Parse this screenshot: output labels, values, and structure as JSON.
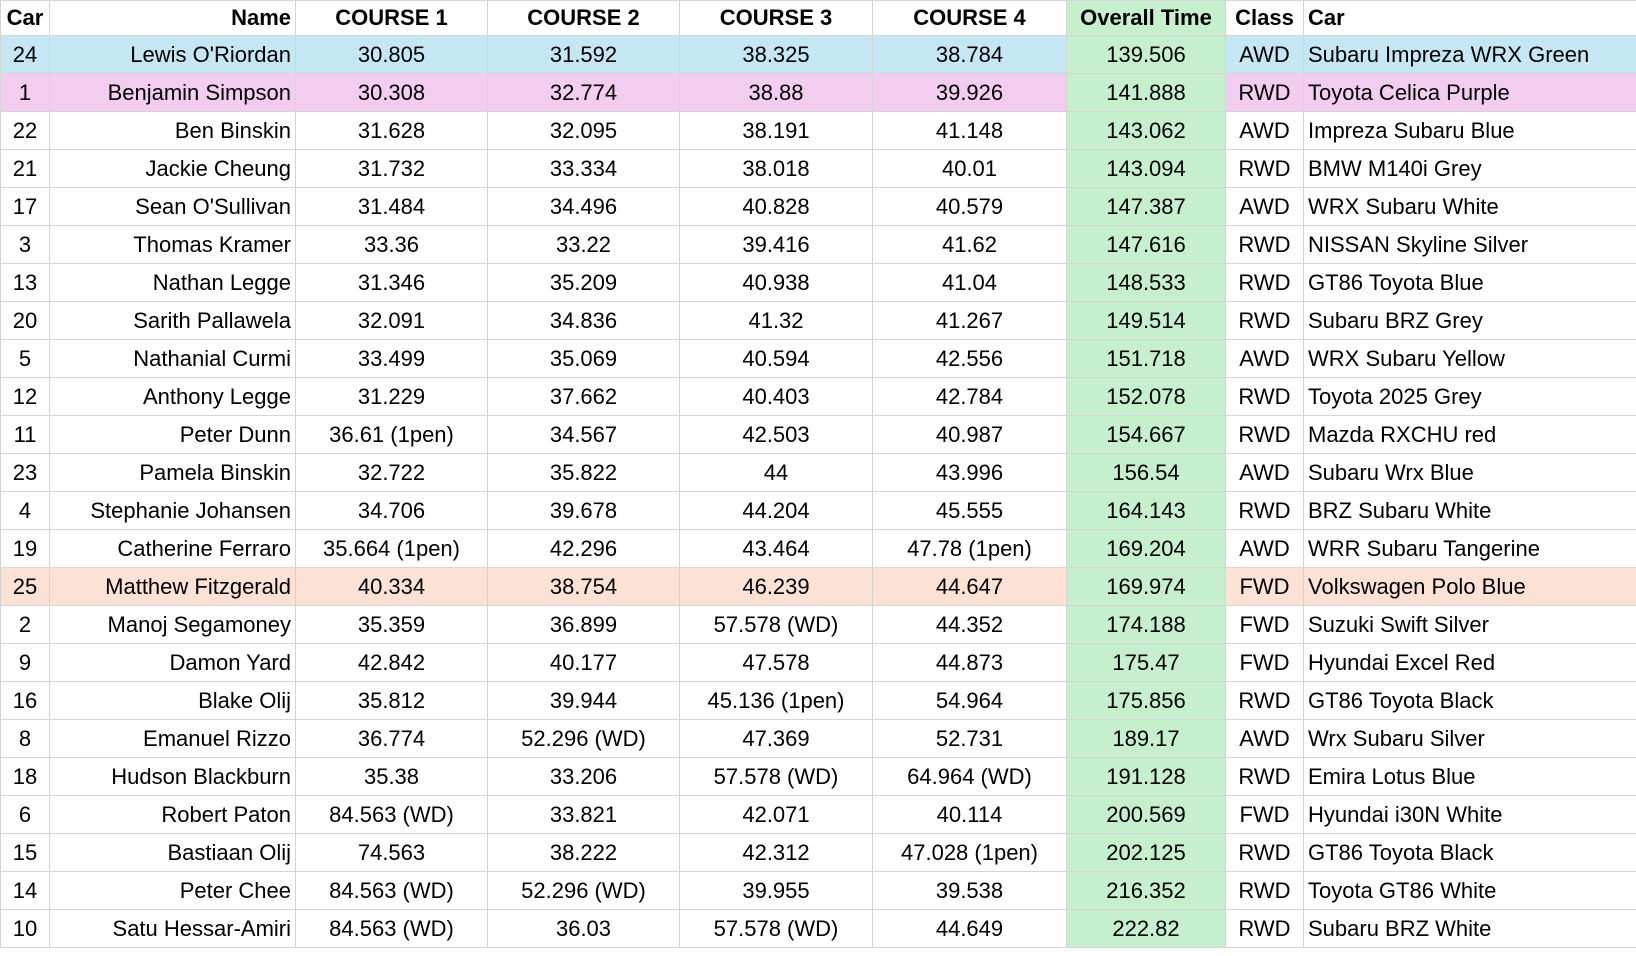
{
  "table": {
    "header": [
      "Car",
      "Name",
      "COURSE 1",
      "COURSE 2",
      "COURSE 3",
      "COURSE 4",
      "Overall Time",
      "Class",
      "Car"
    ],
    "rows": [
      [
        "24",
        "Lewis O'Riordan",
        "30.805",
        "31.592",
        "38.325",
        "38.784",
        "139.506",
        "AWD",
        "Subaru Impreza WRX Green"
      ],
      [
        "1",
        "Benjamin Simpson",
        "30.308",
        "32.774",
        "38.88",
        "39.926",
        "141.888",
        "RWD",
        "Toyota Celica Purple"
      ],
      [
        "22",
        "Ben Binskin",
        "31.628",
        "32.095",
        "38.191",
        "41.148",
        "143.062",
        "AWD",
        "Impreza Subaru Blue"
      ],
      [
        "21",
        "Jackie Cheung",
        "31.732",
        "33.334",
        "38.018",
        "40.01",
        "143.094",
        "RWD",
        "BMW M140i Grey"
      ],
      [
        "17",
        "Sean O'Sullivan",
        "31.484",
        "34.496",
        "40.828",
        "40.579",
        "147.387",
        "AWD",
        "WRX Subaru White"
      ],
      [
        "3",
        "Thomas Kramer",
        "33.36",
        "33.22",
        "39.416",
        "41.62",
        "147.616",
        "RWD",
        "NISSAN Skyline Silver"
      ],
      [
        "13",
        "Nathan Legge",
        "31.346",
        "35.209",
        "40.938",
        "41.04",
        "148.533",
        "RWD",
        "GT86 Toyota Blue"
      ],
      [
        "20",
        "Sarith Pallawela",
        "32.091",
        "34.836",
        "41.32",
        "41.267",
        "149.514",
        "RWD",
        "Subaru BRZ Grey"
      ],
      [
        "5",
        "Nathanial Curmi",
        "33.499",
        "35.069",
        "40.594",
        "42.556",
        "151.718",
        "AWD",
        "WRX Subaru Yellow"
      ],
      [
        "12",
        "Anthony Legge",
        "31.229",
        "37.662",
        "40.403",
        "42.784",
        "152.078",
        "RWD",
        "Toyota 2025 Grey"
      ],
      [
        "11",
        "Peter Dunn",
        "36.61 (1pen)",
        "34.567",
        "42.503",
        "40.987",
        "154.667",
        "RWD",
        "Mazda RXCHU red"
      ],
      [
        "23",
        "Pamela Binskin",
        "32.722",
        "35.822",
        "44",
        "43.996",
        "156.54",
        "AWD",
        "Subaru Wrx Blue"
      ],
      [
        "4",
        "Stephanie Johansen",
        "34.706",
        "39.678",
        "44.204",
        "45.555",
        "164.143",
        "RWD",
        "BRZ Subaru White"
      ],
      [
        "19",
        "Catherine Ferraro",
        "35.664 (1pen)",
        "42.296",
        "43.464",
        "47.78 (1pen)",
        "169.204",
        "AWD",
        "WRR Subaru Tangerine"
      ],
      [
        "25",
        "Matthew Fitzgerald",
        "40.334",
        "38.754",
        "46.239",
        "44.647",
        "169.974",
        "FWD",
        "Volkswagen Polo Blue"
      ],
      [
        "2",
        "Manoj Segamoney",
        "35.359",
        "36.899",
        "57.578 (WD)",
        "44.352",
        "174.188",
        "FWD",
        "Suzuki Swift Silver"
      ],
      [
        "9",
        "Damon Yard",
        "42.842",
        "40.177",
        "47.578",
        "44.873",
        "175.47",
        "FWD",
        "Hyundai Excel Red"
      ],
      [
        "16",
        "Blake Olij",
        "35.812",
        "39.944",
        "45.136 (1pen)",
        "54.964",
        "175.856",
        "RWD",
        "GT86 Toyota Black"
      ],
      [
        "8",
        "Emanuel Rizzo",
        "36.774",
        "52.296 (WD)",
        "47.369",
        "52.731",
        "189.17",
        "AWD",
        "Wrx Subaru Silver"
      ],
      [
        "18",
        "Hudson Blackburn",
        "35.38",
        "33.206",
        "57.578 (WD)",
        "64.964 (WD)",
        "191.128",
        "RWD",
        "Emira Lotus Blue"
      ],
      [
        "6",
        "Robert Paton",
        "84.563 (WD)",
        "33.821",
        "42.071",
        "40.114",
        "200.569",
        "FWD",
        "Hyundai i30N White"
      ],
      [
        "15",
        "Bastiaan Olij",
        "74.563",
        "38.222",
        "42.312",
        "47.028 (1pen)",
        "202.125",
        "RWD",
        "GT86 Toyota Black"
      ],
      [
        "14",
        "Peter Chee",
        "84.563 (WD)",
        "52.296 (WD)",
        "39.955",
        "39.538",
        "216.352",
        "RWD",
        "Toyota GT86 White"
      ],
      [
        "10",
        "Satu Hessar-Amiri",
        "84.563 (WD)",
        "36.03",
        "57.578 (WD)",
        "44.649",
        "222.82",
        "RWD",
        "Subaru BRZ White"
      ]
    ]
  }
}
